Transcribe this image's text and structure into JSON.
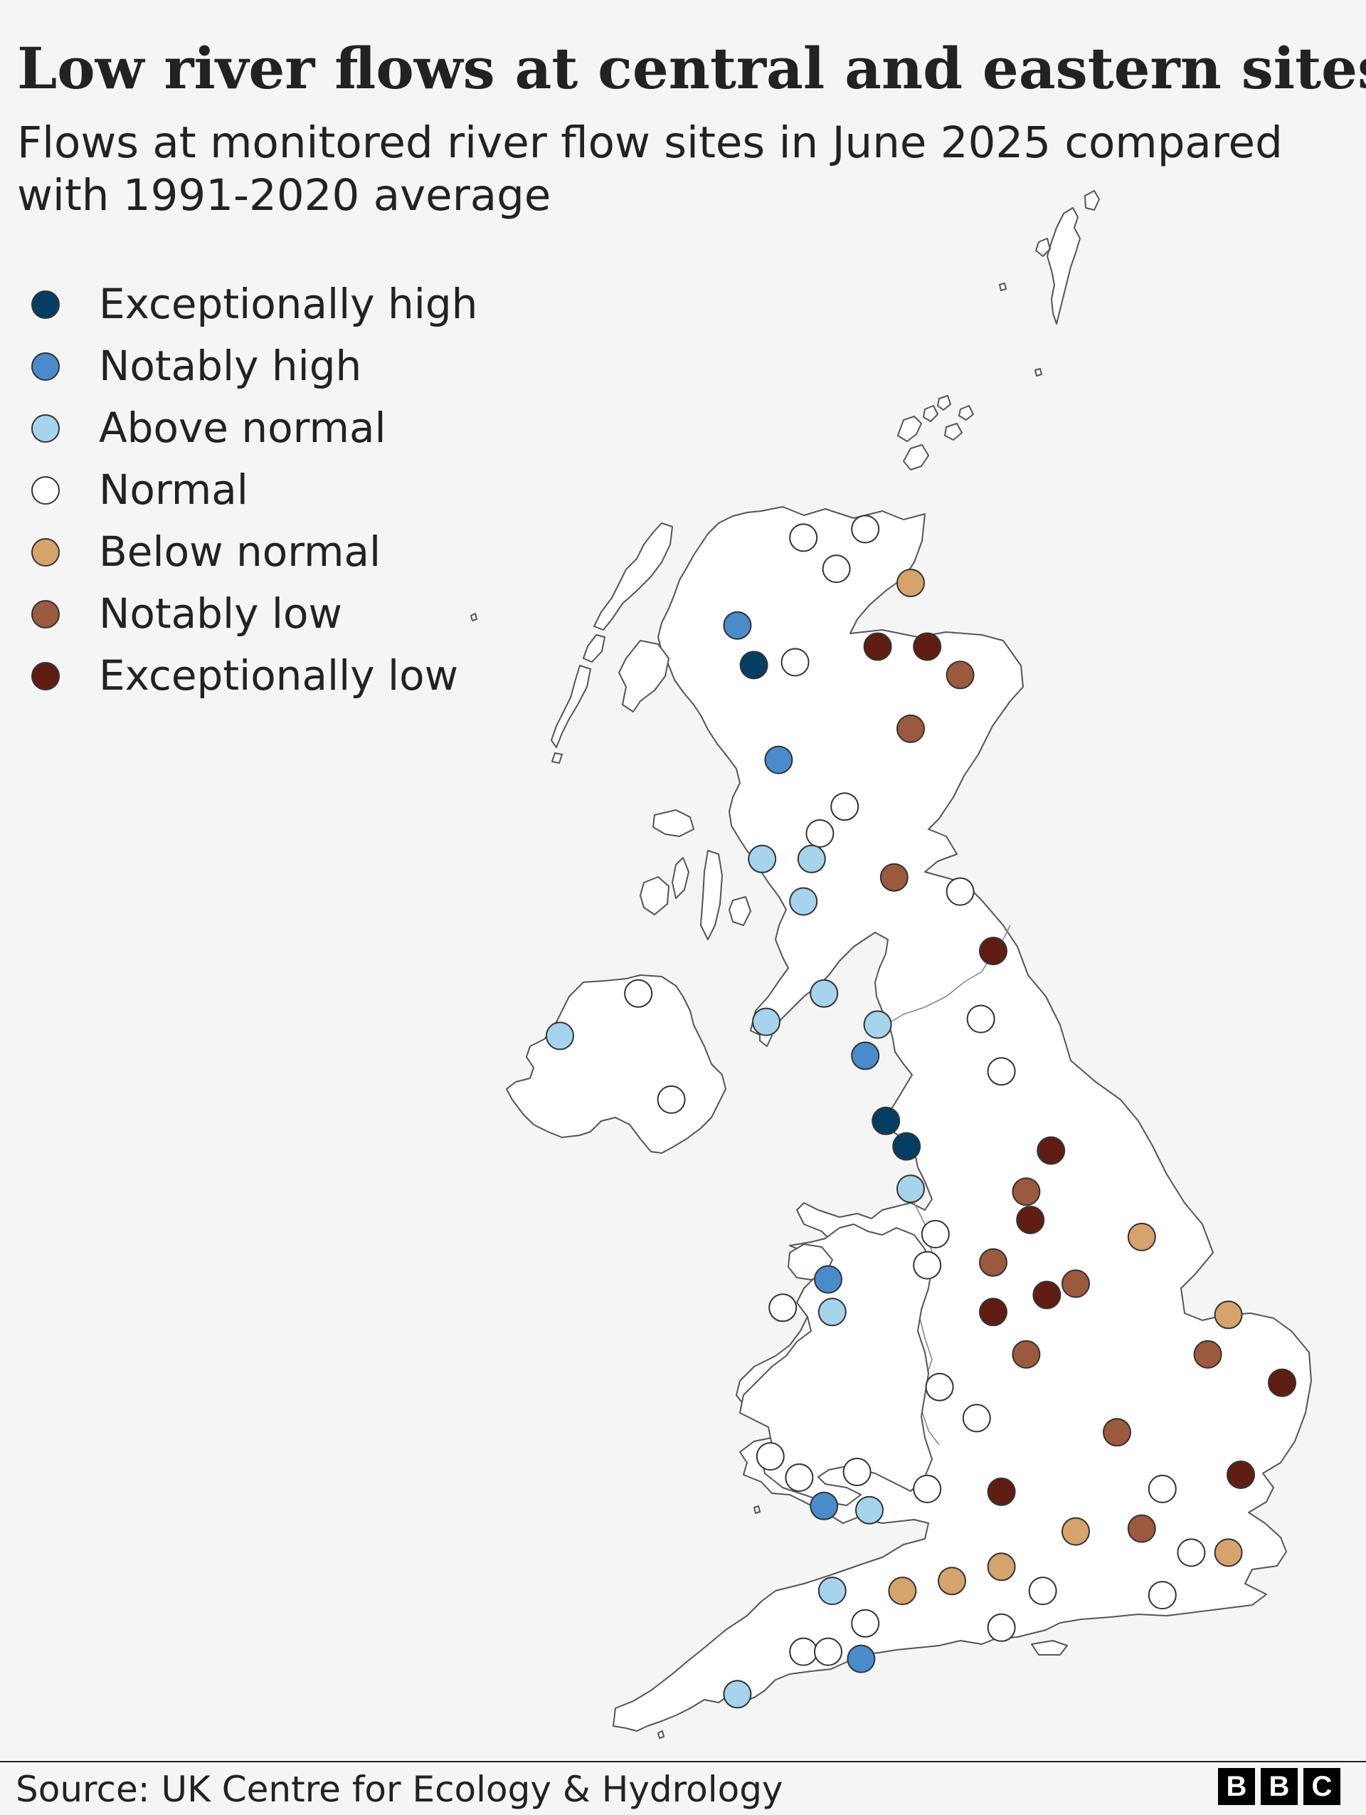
{
  "title": "Low river flows at central and eastern sites",
  "subtitle": "Flows at monitored river flow sites in June 2025 compared with 1991-2020 average",
  "source": "Source: UK Centre for Ecology & Hydrology",
  "logo_letters": [
    "B",
    "B",
    "C"
  ],
  "colors": {
    "background": "#f5f5f5",
    "land": "#ffffff",
    "coastline": "#555555",
    "exceptionally_high": "#063d63",
    "notably_high": "#4a8bcb",
    "above_normal": "#a6d4ec",
    "normal": "#ffffff",
    "below_normal": "#d6a36c",
    "notably_low": "#9b5a3e",
    "exceptionally_low": "#5f1d14"
  },
  "legend": [
    {
      "key": "exceptionally_high",
      "label": "Exceptionally high"
    },
    {
      "key": "notably_high",
      "label": "Notably high"
    },
    {
      "key": "above_normal",
      "label": "Above normal"
    },
    {
      "key": "normal",
      "label": "Normal"
    },
    {
      "key": "below_normal",
      "label": "Below normal"
    },
    {
      "key": "notably_low",
      "label": "Notably low"
    },
    {
      "key": "exceptionally_low",
      "label": "Exceptionally low"
    }
  ],
  "map_data": {
    "projection_note": "Points are approximate site locations (lon, lat)",
    "sites": [
      {
        "lon": -3.55,
        "lat": 58.48,
        "category": "normal"
      },
      {
        "lon": -4.3,
        "lat": 58.42,
        "category": "normal"
      },
      {
        "lon": -3.9,
        "lat": 58.2,
        "category": "normal"
      },
      {
        "lon": -3.0,
        "lat": 58.1,
        "category": "below_normal"
      },
      {
        "lon": -5.1,
        "lat": 57.8,
        "category": "notably_high"
      },
      {
        "lon": -4.9,
        "lat": 57.52,
        "category": "exceptionally_high"
      },
      {
        "lon": -4.4,
        "lat": 57.54,
        "category": "normal"
      },
      {
        "lon": -3.4,
        "lat": 57.65,
        "category": "exceptionally_low"
      },
      {
        "lon": -2.8,
        "lat": 57.65,
        "category": "exceptionally_low"
      },
      {
        "lon": -2.4,
        "lat": 57.45,
        "category": "notably_low"
      },
      {
        "lon": -3.0,
        "lat": 57.07,
        "category": "notably_low"
      },
      {
        "lon": -4.6,
        "lat": 56.85,
        "category": "notably_high"
      },
      {
        "lon": -3.8,
        "lat": 56.52,
        "category": "normal"
      },
      {
        "lon": -4.1,
        "lat": 56.33,
        "category": "normal"
      },
      {
        "lon": -4.8,
        "lat": 56.15,
        "category": "above_normal"
      },
      {
        "lon": -4.2,
        "lat": 56.15,
        "category": "above_normal"
      },
      {
        "lon": -4.3,
        "lat": 55.85,
        "category": "above_normal"
      },
      {
        "lon": -3.2,
        "lat": 56.02,
        "category": "notably_low"
      },
      {
        "lon": -2.4,
        "lat": 55.92,
        "category": "normal"
      },
      {
        "lon": -2.0,
        "lat": 55.5,
        "category": "exceptionally_low"
      },
      {
        "lon": -4.05,
        "lat": 55.2,
        "category": "above_normal"
      },
      {
        "lon": -4.75,
        "lat": 55.0,
        "category": "above_normal"
      },
      {
        "lon": -6.3,
        "lat": 55.2,
        "category": "normal"
      },
      {
        "lon": -7.25,
        "lat": 54.9,
        "category": "above_normal"
      },
      {
        "lon": -5.9,
        "lat": 54.45,
        "category": "normal"
      },
      {
        "lon": -3.4,
        "lat": 54.98,
        "category": "above_normal"
      },
      {
        "lon": -3.55,
        "lat": 54.76,
        "category": "notably_high"
      },
      {
        "lon": -2.15,
        "lat": 55.02,
        "category": "normal"
      },
      {
        "lon": -1.9,
        "lat": 54.65,
        "category": "normal"
      },
      {
        "lon": -3.3,
        "lat": 54.3,
        "category": "exceptionally_high"
      },
      {
        "lon": -3.05,
        "lat": 54.12,
        "category": "exceptionally_high"
      },
      {
        "lon": -1.3,
        "lat": 54.09,
        "category": "exceptionally_low"
      },
      {
        "lon": -3.0,
        "lat": 53.82,
        "category": "above_normal"
      },
      {
        "lon": -1.6,
        "lat": 53.8,
        "category": "notably_low"
      },
      {
        "lon": -1.55,
        "lat": 53.6,
        "category": "exceptionally_low"
      },
      {
        "lon": -2.7,
        "lat": 53.5,
        "category": "normal"
      },
      {
        "lon": -2.8,
        "lat": 53.28,
        "category": "normal"
      },
      {
        "lon": -2.0,
        "lat": 53.3,
        "category": "notably_low"
      },
      {
        "lon": -0.2,
        "lat": 53.48,
        "category": "below_normal"
      },
      {
        "lon": -4.0,
        "lat": 53.18,
        "category": "notably_high"
      },
      {
        "lon": -4.55,
        "lat": 52.98,
        "category": "normal"
      },
      {
        "lon": -3.95,
        "lat": 52.95,
        "category": "above_normal"
      },
      {
        "lon": -2.0,
        "lat": 52.95,
        "category": "exceptionally_low"
      },
      {
        "lon": -1.35,
        "lat": 53.07,
        "category": "exceptionally_low"
      },
      {
        "lon": -1.0,
        "lat": 53.15,
        "category": "notably_low"
      },
      {
        "lon": -1.6,
        "lat": 52.65,
        "category": "notably_low"
      },
      {
        "lon": 0.85,
        "lat": 52.93,
        "category": "below_normal"
      },
      {
        "lon": 0.6,
        "lat": 52.65,
        "category": "notably_low"
      },
      {
        "lon": 1.5,
        "lat": 52.45,
        "category": "exceptionally_low"
      },
      {
        "lon": -2.65,
        "lat": 52.42,
        "category": "normal"
      },
      {
        "lon": -2.2,
        "lat": 52.2,
        "category": "normal"
      },
      {
        "lon": -0.5,
        "lat": 52.1,
        "category": "notably_low"
      },
      {
        "lon": -4.7,
        "lat": 51.93,
        "category": "normal"
      },
      {
        "lon": -4.35,
        "lat": 51.78,
        "category": "normal"
      },
      {
        "lon": -3.65,
        "lat": 51.82,
        "category": "normal"
      },
      {
        "lon": -2.8,
        "lat": 51.7,
        "category": "normal"
      },
      {
        "lon": -4.05,
        "lat": 51.58,
        "category": "notably_high"
      },
      {
        "lon": -3.5,
        "lat": 51.55,
        "category": "above_normal"
      },
      {
        "lon": -1.9,
        "lat": 51.68,
        "category": "exceptionally_low"
      },
      {
        "lon": 0.05,
        "lat": 51.7,
        "category": "normal"
      },
      {
        "lon": 1.0,
        "lat": 51.8,
        "category": "exceptionally_low"
      },
      {
        "lon": -1.0,
        "lat": 51.4,
        "category": "below_normal"
      },
      {
        "lon": -0.2,
        "lat": 51.42,
        "category": "notably_low"
      },
      {
        "lon": 0.4,
        "lat": 51.25,
        "category": "normal"
      },
      {
        "lon": 0.85,
        "lat": 51.25,
        "category": "below_normal"
      },
      {
        "lon": -1.9,
        "lat": 51.15,
        "category": "below_normal"
      },
      {
        "lon": -2.5,
        "lat": 51.05,
        "category": "below_normal"
      },
      {
        "lon": -3.1,
        "lat": 50.98,
        "category": "below_normal"
      },
      {
        "lon": -3.95,
        "lat": 50.98,
        "category": "above_normal"
      },
      {
        "lon": -1.4,
        "lat": 50.98,
        "category": "normal"
      },
      {
        "lon": 0.05,
        "lat": 50.95,
        "category": "normal"
      },
      {
        "lon": -3.55,
        "lat": 50.75,
        "category": "normal"
      },
      {
        "lon": -1.9,
        "lat": 50.72,
        "category": "normal"
      },
      {
        "lon": -4.3,
        "lat": 50.55,
        "category": "normal"
      },
      {
        "lon": -4.0,
        "lat": 50.55,
        "category": "normal"
      },
      {
        "lon": -3.6,
        "lat": 50.5,
        "category": "notably_high"
      },
      {
        "lon": -5.1,
        "lat": 50.25,
        "category": "above_normal"
      }
    ]
  }
}
